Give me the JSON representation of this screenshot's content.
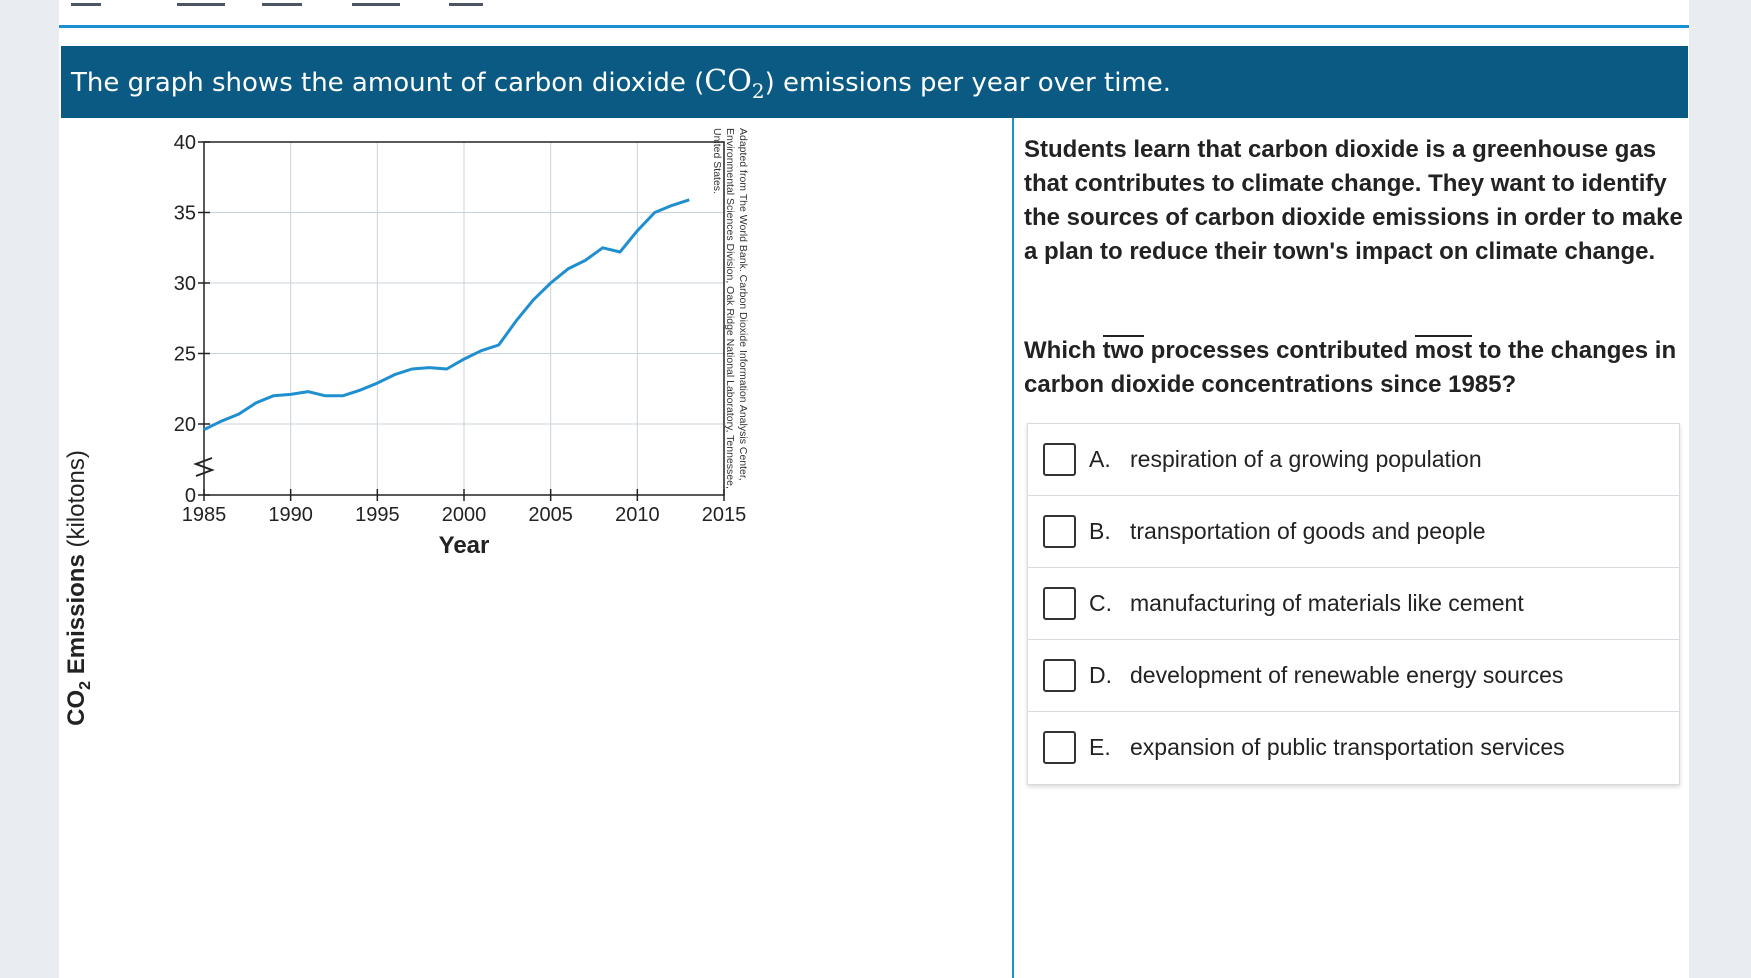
{
  "banner": {
    "text_before": "The graph shows the amount of carbon dioxide (",
    "formula": "CO",
    "formula_sub": "2",
    "text_after": ") emissions per year over time."
  },
  "chart_data": {
    "type": "line",
    "title": "",
    "xlabel": "Year",
    "ylabel_main": "CO",
    "ylabel_sub": "2",
    "ylabel_rest": " Emissions",
    "ylabel_unit": " (kilotons)",
    "x_ticks": [
      "1985",
      "1990",
      "1995",
      "2000",
      "2005",
      "2010",
      "2015"
    ],
    "y_ticks": [
      "0",
      "20",
      "25",
      "30",
      "35",
      "40"
    ],
    "xlim": [
      1985,
      2015
    ],
    "ylim": [
      15,
      40
    ],
    "axis_break": true,
    "grid": true,
    "series": [
      {
        "name": "CO2 Emissions",
        "x": [
          1985,
          1986,
          1987,
          1988,
          1989,
          1990,
          1991,
          1992,
          1993,
          1994,
          1995,
          1996,
          1997,
          1998,
          1999,
          2000,
          2001,
          2002,
          2003,
          2004,
          2005,
          2006,
          2007,
          2008,
          2009,
          2010,
          2011,
          2012,
          2013
        ],
        "y": [
          19.6,
          20.2,
          20.7,
          21.5,
          22.0,
          22.1,
          22.3,
          22.0,
          22.0,
          22.4,
          22.9,
          23.5,
          23.9,
          24.0,
          23.9,
          24.6,
          25.2,
          25.6,
          27.3,
          28.8,
          30.0,
          31.0,
          31.6,
          32.5,
          32.2,
          33.7,
          35.0,
          35.5,
          35.9
        ],
        "color": "#1f8fd0"
      }
    ],
    "source_note": "Adapted from The World Bank. Carbon Dioxide Information Analysis Center, Environmental Sciences Division, Oak Ridge National Laboratory, Tennessee, United States."
  },
  "question": {
    "stem": "Students learn that carbon dioxide is a greenhouse gas that contributes to climate change. They want to identify the sources of carbon dioxide emissions in order to make a plan to reduce their town's impact on climate change.",
    "prompt_1": "Which ",
    "prompt_two": "two",
    "prompt_2": " processes contributed ",
    "prompt_most": "most",
    "prompt_3": " to the changes in carbon dioxide concentrations since 1985?",
    "options": [
      {
        "letter": "A.",
        "text": "respiration of a growing population"
      },
      {
        "letter": "B.",
        "text": "transportation of goods and people"
      },
      {
        "letter": "C.",
        "text": "manufacturing of materials like cement"
      },
      {
        "letter": "D.",
        "text": "development of renewable energy sources"
      },
      {
        "letter": "E.",
        "text": "expansion of public transportation services"
      }
    ]
  },
  "colors": {
    "banner_bg": "#0b5a84",
    "accent": "#1a8fd1",
    "line": "#1f8fd0"
  }
}
